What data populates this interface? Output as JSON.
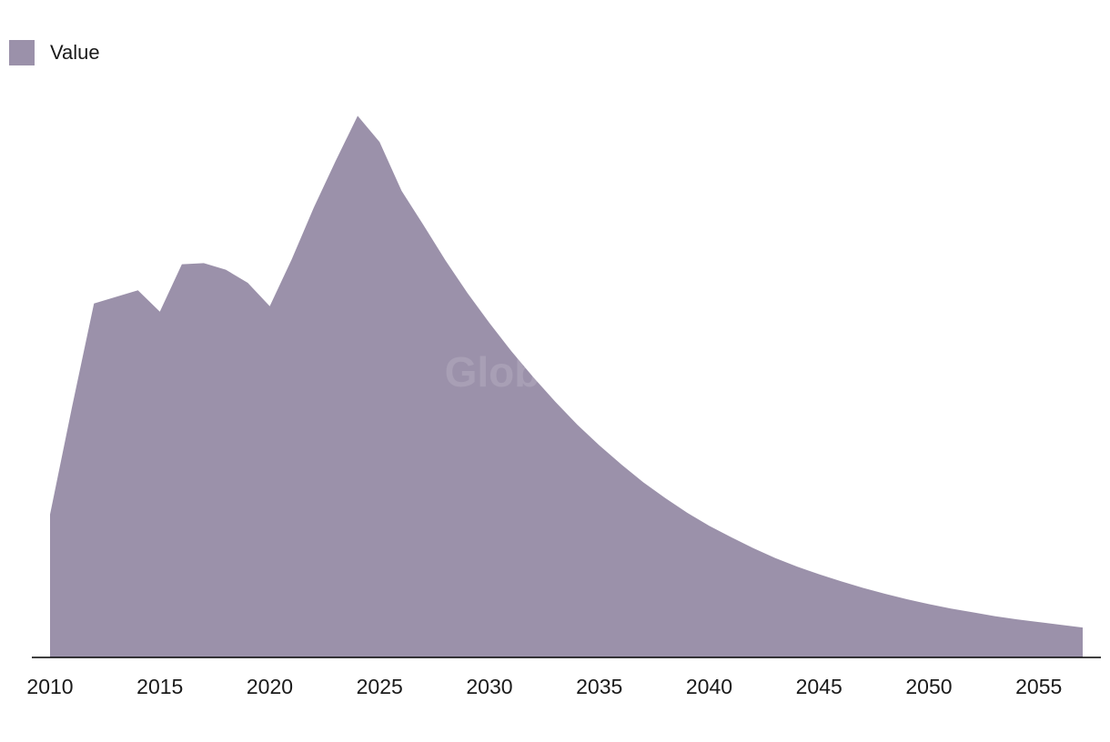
{
  "legend": {
    "label": "Value"
  },
  "watermark": "GlobalData",
  "colors": {
    "area": "#9b91aa",
    "axis": "#000000"
  },
  "chart_data": {
    "type": "area",
    "title": "",
    "xlabel": "",
    "ylabel": "",
    "legend_position": "top-left",
    "grid": false,
    "xlim": [
      2010,
      2057
    ],
    "ylim": [
      0,
      100
    ],
    "x_ticks": [
      "2010",
      "2015",
      "2020",
      "2025",
      "2030",
      "2035",
      "2040",
      "2045",
      "2050",
      "2055"
    ],
    "series": [
      {
        "name": "Value",
        "x": [
          2010,
          2011,
          2012,
          2013,
          2014,
          2015,
          2016,
          2017,
          2018,
          2019,
          2020,
          2021,
          2022,
          2023,
          2024,
          2025,
          2026,
          2027,
          2028,
          2029,
          2030,
          2031,
          2032,
          2033,
          2034,
          2035,
          2036,
          2037,
          2038,
          2039,
          2040,
          2041,
          2042,
          2043,
          2044,
          2045,
          2046,
          2047,
          2048,
          2049,
          2050,
          2051,
          2052,
          2053,
          2054,
          2055,
          2056,
          2057
        ],
        "values": [
          26.3,
          46.0,
          65.1,
          66.3,
          67.5,
          63.6,
          72.3,
          72.5,
          71.3,
          68.9,
          64.6,
          73.2,
          82.7,
          91.3,
          99.6,
          94.8,
          85.8,
          79.5,
          73.0,
          67.0,
          61.5,
          56.3,
          51.5,
          47.0,
          42.8,
          39.0,
          35.5,
          32.2,
          29.3,
          26.6,
          24.2,
          22.1,
          20.1,
          18.3,
          16.7,
          15.3,
          14.0,
          12.8,
          11.7,
          10.7,
          9.8,
          9.0,
          8.3,
          7.6,
          7.0,
          6.5,
          6.0,
          5.5
        ]
      }
    ]
  }
}
